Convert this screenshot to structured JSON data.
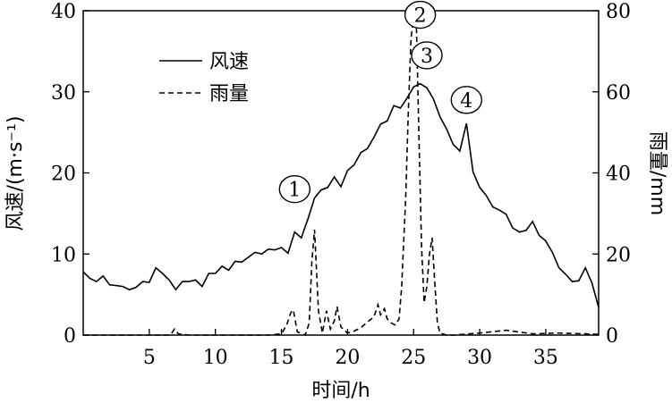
{
  "chart_data": {
    "type": "line",
    "xlabel": "时间/h",
    "ylabel_left": "风速/(m·s⁻¹)",
    "ylabel_right": "雨量/mm",
    "xlim": [
      0,
      39
    ],
    "ylim_left": [
      0,
      40
    ],
    "ylim_right": [
      0,
      80
    ],
    "x_ticks": [
      "5",
      "10",
      "15",
      "20",
      "25",
      "30",
      "35"
    ],
    "y_left_ticks": [
      "0",
      "10",
      "20",
      "30",
      "40"
    ],
    "y_right_ticks": [
      "0",
      "20",
      "40",
      "60",
      "80"
    ],
    "legend_position": "top-left",
    "series": [
      {
        "name": "风速",
        "axis": "left",
        "line_style": "solid",
        "x": [
          0.0,
          0.5,
          1.0,
          1.5,
          2.0,
          2.5,
          3.0,
          3.5,
          4.0,
          4.5,
          5.0,
          5.5,
          6.0,
          6.5,
          7.0,
          7.5,
          8.0,
          8.5,
          9.0,
          9.5,
          10.0,
          10.5,
          11.0,
          11.5,
          12.0,
          12.5,
          13.0,
          13.5,
          14.0,
          14.5,
          15.0,
          15.5,
          16.0,
          16.5,
          17.0,
          17.5,
          18.0,
          18.5,
          19.0,
          19.5,
          20.0,
          20.5,
          21.0,
          21.5,
          22.0,
          22.5,
          23.0,
          23.5,
          24.0,
          24.5,
          25.0,
          25.5,
          26.0,
          26.5,
          27.0,
          27.5,
          28.0,
          28.5,
          29.0,
          29.5,
          30.0,
          30.5,
          31.0,
          31.5,
          32.0,
          32.5,
          33.0,
          33.5,
          34.0,
          34.5,
          35.0,
          35.5,
          36.0,
          36.5,
          37.0,
          37.5,
          38.0,
          38.5,
          39.0
        ],
        "values": [
          7.8,
          7.0,
          6.6,
          7.3,
          6.2,
          6.1,
          6.0,
          5.6,
          5.9,
          6.6,
          6.5,
          8.3,
          7.6,
          6.8,
          5.6,
          6.6,
          6.6,
          6.8,
          6.0,
          7.6,
          7.6,
          8.5,
          8.0,
          9.1,
          9.0,
          9.6,
          10.2,
          10.0,
          10.6,
          10.5,
          10.8,
          10.1,
          12.7,
          12.0,
          14.3,
          16.9,
          17.9,
          18.2,
          19.5,
          18.3,
          20.3,
          21.0,
          22.5,
          23.0,
          24.4,
          26.0,
          26.4,
          28.3,
          28.0,
          29.2,
          30.6,
          31.0,
          30.5,
          29.1,
          26.9,
          25.4,
          23.5,
          22.7,
          26.1,
          20.1,
          18.2,
          17.2,
          15.8,
          15.4,
          14.9,
          13.2,
          12.7,
          12.9,
          14.0,
          12.3,
          11.6,
          10.2,
          8.3,
          7.5,
          6.6,
          6.7,
          8.3,
          6.4,
          3.4
        ]
      },
      {
        "name": "雨量",
        "axis": "right",
        "line_style": "dashed",
        "x": [
          0.0,
          2.0,
          4.0,
          6.0,
          6.6,
          6.9,
          7.2,
          8.0,
          10.0,
          12.0,
          14.0,
          15.0,
          15.4,
          15.7,
          15.9,
          16.2,
          16.8,
          17.1,
          17.3,
          17.5,
          17.8,
          18.1,
          18.4,
          18.7,
          19.0,
          19.2,
          19.5,
          20.0,
          20.5,
          21.0,
          21.5,
          22.0,
          22.3,
          22.5,
          22.8,
          23.0,
          23.3,
          23.6,
          23.9,
          24.1,
          24.4,
          24.6,
          24.8,
          25.0,
          25.2,
          25.4,
          25.6,
          25.8,
          26.0,
          26.2,
          26.4,
          26.6,
          26.8,
          27.0,
          27.5,
          28.0,
          30.0,
          32.0,
          34.0,
          36.0,
          38.0,
          39.0
        ],
        "values": [
          0,
          0,
          0,
          0,
          0,
          1.5,
          0.3,
          0,
          0,
          0,
          0,
          0.3,
          2.5,
          5.5,
          6.2,
          0.8,
          0,
          3.0,
          18.0,
          26.0,
          6.0,
          0.5,
          6.0,
          1.5,
          3.5,
          7.0,
          2.0,
          0.5,
          1.0,
          1.8,
          3.2,
          4.5,
          7.5,
          5.0,
          6.5,
          4.0,
          3.0,
          2.5,
          4.0,
          12.0,
          34.0,
          55.0,
          73.0,
          79.0,
          78.0,
          50.0,
          22.0,
          8.0,
          12.0,
          20.0,
          24.0,
          13.0,
          3.0,
          0.5,
          0,
          0,
          0.5,
          1.2,
          0.3,
          0.5,
          0.3,
          0.2
        ]
      }
    ],
    "annotations": [
      {
        "label": "1",
        "x": 16.0,
        "y": 18.0
      },
      {
        "label": "2",
        "x": 25.5,
        "y": 39.5
      },
      {
        "label": "3",
        "x": 26.0,
        "y": 34.5
      },
      {
        "label": "4",
        "x": 29.0,
        "y": 29.0
      }
    ]
  }
}
